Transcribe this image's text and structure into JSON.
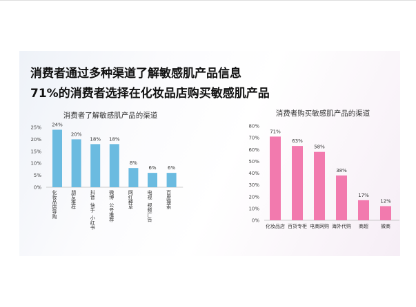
{
  "headline": {
    "line1": "消费者通过多种渠道了解敏感肌产品信息",
    "line2": "71%的消费者选择在化妆品店购买敏感肌产品"
  },
  "chart_data": [
    {
      "type": "bar",
      "title": "消费者了解敏感肌产品的渠道",
      "categories": [
        "化妆品店导购",
        "朋友推荐",
        "抖音  快手  小红书",
        "微博  公号推荐",
        "网红种草",
        "电视  视频广告",
        "百度搜索"
      ],
      "values": [
        24,
        20,
        18,
        18,
        8,
        6,
        6
      ],
      "data_labels": [
        "24%",
        "20%",
        "18%",
        "18%",
        "8%",
        "6%",
        "6%"
      ],
      "ylim": [
        0,
        25
      ],
      "yticks": [
        "0%",
        "5%",
        "10%",
        "15%",
        "20%",
        "25%"
      ],
      "color": "#6bbbe0",
      "grid": false
    },
    {
      "type": "bar",
      "title": "消费者购买敏感肌产品的渠道",
      "categories": [
        "化妆品店",
        "百货专柜",
        "电商网购",
        "海外代购",
        "商超",
        "微商"
      ],
      "values": [
        71,
        63,
        58,
        38,
        17,
        12
      ],
      "data_labels": [
        "71%",
        "63%",
        "58%",
        "38%",
        "17%",
        "12%"
      ],
      "ylim": [
        0,
        80
      ],
      "yticks": [
        "0%",
        "10%",
        "20%",
        "30%",
        "40%",
        "50%",
        "60%",
        "70%",
        "80%"
      ],
      "color": "#f27aae",
      "grid": false
    }
  ]
}
